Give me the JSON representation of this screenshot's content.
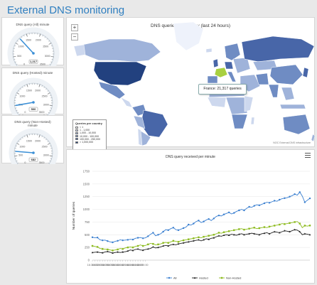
{
  "page": {
    "title": "External DNS monitoring"
  },
  "gauges": [
    {
      "title": "DNS query (All) minute",
      "value": 1217,
      "value_label": "1,217",
      "max": 3500,
      "ticks": [
        "0",
        "500",
        "1000",
        "1500",
        "2000",
        "2500",
        "3000",
        "3500"
      ]
    },
    {
      "title": "DNS query (Hosted) minute",
      "value": 500,
      "value_label": "500",
      "max": 3500,
      "ticks": [
        "0",
        "500",
        "1000",
        "1500",
        "2000",
        "2500",
        "3000",
        "3500"
      ]
    },
    {
      "title": "DNS query (Non-Hosted) minute",
      "value": 682,
      "value_label": "682",
      "max": 3500,
      "ticks": [
        "0",
        "500",
        "1000",
        "1500",
        "2000",
        "2500",
        "3000",
        "3500"
      ]
    }
  ],
  "map": {
    "title": "DNS queries by country (last 24 hours)",
    "zoom_in": "+",
    "zoom_out": "−",
    "tooltip": "France: 21,317 queries",
    "credits": "NOC External DNS infrastructure",
    "legend": {
      "title": "Queries per country",
      "items": [
        {
          "label": "< 1",
          "color": "#eef2fb"
        },
        {
          "label": "1 - 1,000",
          "color": "#cdd8ee"
        },
        {
          "label": "1,000 - 10,000",
          "color": "#9fb3da"
        },
        {
          "label": "10,000 - 100,000",
          "color": "#6f8cc3"
        },
        {
          "label": "100,000 - 250,000",
          "color": "#4866a8"
        },
        {
          "label": "> 1,000,000",
          "color": "#22417f"
        }
      ]
    }
  },
  "chart_data": {
    "type": "line",
    "title": "DNS query received per minute",
    "ylabel": "Number of queries",
    "ylim": [
      0,
      1750
    ],
    "yticks": [
      "0",
      "250",
      "500",
      "750",
      "1000",
      "1250",
      "1500",
      "1750"
    ],
    "x": [
      "16:30:00",
      "16:31:00",
      "16:32:00",
      "16:33:00",
      "16:34:00",
      "16:35:00",
      "16:36:00",
      "16:37:00",
      "16:38:00",
      "16:39:00",
      "16:40:00",
      "16:41:00",
      "16:42:00",
      "16:43:00",
      "16:44:00",
      "16:45:00",
      "16:46:00",
      "16:47:00",
      "16:48:00",
      "16:49:00",
      "16:50:00",
      "16:51:00",
      "16:52:00",
      "16:53:00",
      "16:54:00",
      "16:55:00",
      "16:56:00",
      "16:57:00",
      "16:58:00",
      "16:59:00",
      "17:00:00",
      "17:01:00",
      "17:02:00",
      "17:03:00",
      "17:04:00",
      "17:05:00",
      "17:06:00",
      "17:07:00",
      "17:08:00",
      "17:09:00",
      "17:10:00",
      "17:11:00",
      "17:12:00",
      "17:13:00",
      "17:14:00",
      "17:15:00",
      "17:16:00",
      "17:17:00",
      "17:18:00",
      "17:19:00",
      "17:20:00",
      "17:21:00",
      "17:22:00",
      "17:23:00",
      "17:24:00",
      "17:25:00",
      "17:26:00",
      "17:27:00",
      "17:28:00",
      "17:29:00",
      "17:30:00",
      "17:31:00",
      "17:32:00",
      "17:33:00",
      "17:34:00",
      "17:35:00",
      "17:36:00",
      "17:37:00",
      "17:38:00",
      "17:39:00",
      "17:40:00",
      "17:41:00",
      "17:42:00",
      "17:43:00",
      "17:44:00",
      "17:45:00",
      "17:46:00",
      "17:47:00",
      "17:48:00",
      "17:49:00",
      "17:50:00",
      "17:51:00",
      "17:52:00",
      "17:53:00",
      "17:54:00",
      "17:55:00",
      "17:56:00"
    ],
    "xtick_labels": [
      "16:30:00",
      "16:31:00",
      "16:32:00",
      "16:33:00",
      "16:34:00",
      "16:35:00",
      "16:36:00",
      "16:37:00",
      "16:38:00",
      "16:39:00",
      "16:40:00",
      "16:41:00",
      "16:42:00",
      "16:43:00",
      "16:44:00",
      "16:45:00",
      "16:46:00",
      "16:47:00",
      "16:48:00",
      "16:49:00",
      "16:50:00",
      "16:51:00"
    ],
    "series": [
      {
        "name": "All",
        "color": "#3a7fd0",
        "marker": "circle",
        "values": [
          450,
          440,
          445,
          400,
          390,
          395,
          375,
          360,
          350,
          370,
          380,
          400,
          390,
          395,
          400,
          410,
          405,
          430,
          440,
          445,
          430,
          440,
          470,
          510,
          540,
          480,
          500,
          520,
          560,
          600,
          590,
          620,
          640,
          600,
          590,
          610,
          630,
          650,
          700,
          690,
          720,
          760,
          780,
          740,
          760,
          790,
          810,
          780,
          820,
          860,
          880,
          870,
          900,
          920,
          940,
          910,
          930,
          960,
          980,
          1000,
          980,
          1020,
          1050,
          1040,
          1070,
          1090,
          1080,
          1100,
          1120,
          1140,
          1130,
          1150,
          1170,
          1160,
          1190,
          1210,
          1220,
          1230,
          1250,
          1270,
          1300,
          1280,
          1340,
          1260,
          1140,
          1180,
          1217
        ]
      },
      {
        "name": "Hosted",
        "color": "#222222",
        "marker": "triangle",
        "values": [
          150,
          155,
          160,
          150,
          145,
          160,
          170,
          155,
          140,
          150,
          160,
          150,
          160,
          165,
          180,
          200,
          190,
          210,
          220,
          200,
          195,
          210,
          220,
          230,
          260,
          240,
          250,
          260,
          280,
          290,
          280,
          300,
          310,
          300,
          320,
          330,
          340,
          350,
          360,
          370,
          380,
          390,
          400,
          380,
          400,
          420,
          410,
          430,
          440,
          460,
          480,
          470,
          490,
          500,
          490,
          510,
          500,
          490,
          510,
          520,
          500,
          510,
          520,
          530,
          520,
          510,
          500,
          520,
          530,
          540,
          520,
          540,
          560,
          550,
          540,
          560,
          580,
          570,
          560,
          580,
          600,
          590,
          560,
          500,
          520,
          510,
          500
        ]
      },
      {
        "name": "Non-Hosted",
        "color": "#8dbb1f",
        "marker": "square",
        "values": [
          280,
          270,
          260,
          230,
          220,
          215,
          210,
          200,
          190,
          200,
          210,
          230,
          220,
          240,
          250,
          260,
          250,
          270,
          280,
          300,
          280,
          290,
          310,
          330,
          320,
          300,
          310,
          320,
          340,
          350,
          340,
          360,
          380,
          370,
          360,
          380,
          390,
          400,
          410,
          420,
          430,
          440,
          450,
          440,
          460,
          470,
          480,
          490,
          500,
          520,
          540,
          530,
          550,
          560,
          570,
          580,
          590,
          600,
          610,
          620,
          600,
          610,
          620,
          630,
          640,
          620,
          630,
          640,
          650,
          640,
          660,
          670,
          680,
          690,
          700,
          720,
          710,
          720,
          730,
          740,
          750,
          760,
          720,
          640,
          680,
          670,
          682
        ]
      }
    ],
    "legend": [
      "All",
      "Hosted",
      "Non-Hosted"
    ]
  }
}
